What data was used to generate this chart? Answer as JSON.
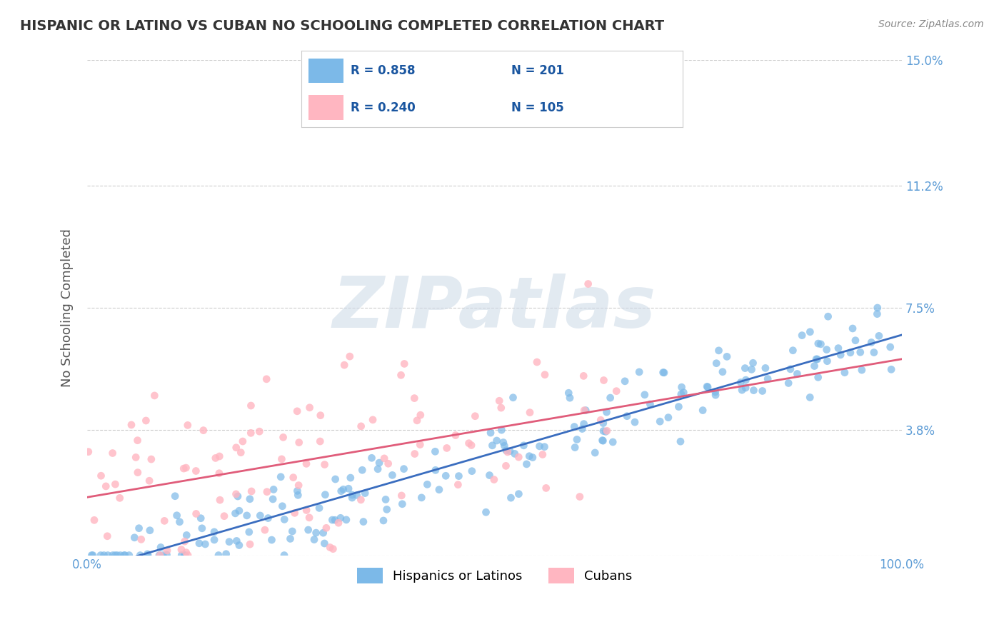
{
  "title": "HISPANIC OR LATINO VS CUBAN NO SCHOOLING COMPLETED CORRELATION CHART",
  "source": "Source: ZipAtlas.com",
  "ylabel": "No Schooling Completed",
  "xlim": [
    0,
    100
  ],
  "ylim": [
    0,
    15.0
  ],
  "yticks": [
    0,
    3.8,
    7.5,
    11.2,
    15.0
  ],
  "xtick_labels": [
    "0.0%",
    "100.0%"
  ],
  "ytick_labels": [
    "",
    "3.8%",
    "7.5%",
    "11.2%",
    "15.0%"
  ],
  "legend_r1": "R = 0.858",
  "legend_n1": "N = 201",
  "legend_r2": "R = 0.240",
  "legend_n2": "N = 105",
  "legend_label1": "Hispanics or Latinos",
  "legend_label2": "Cubans",
  "blue_color": "#7cb9e8",
  "pink_color": "#ffb6c1",
  "blue_line_color": "#3a6dbf",
  "pink_line_color": "#e05c7a",
  "title_color": "#333333",
  "axis_label_color": "#555555",
  "tick_label_color": "#5b9bd5",
  "grid_color": "#cccccc",
  "watermark_color": "#d0dce8",
  "watermark_text": "ZIPatlas",
  "blue_N": 201,
  "pink_N": 105,
  "seed": 42
}
